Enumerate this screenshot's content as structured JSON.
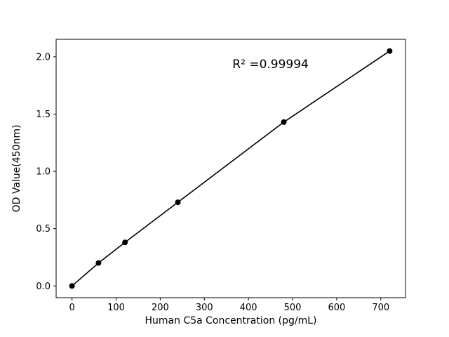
{
  "chart_data": {
    "type": "line",
    "title": "",
    "xlabel": "Human C5a Concentration (pg/mL)",
    "ylabel": "OD Value(450nm)",
    "annotation": {
      "text": "R² =0.99994",
      "x": 450,
      "y": 1.9
    },
    "points": {
      "x": [
        0,
        60,
        120,
        240,
        480,
        720
      ],
      "y": [
        0.0,
        0.2,
        0.38,
        0.73,
        1.43,
        2.05
      ]
    },
    "xlim": [
      -36,
      756
    ],
    "ylim": [
      -0.1025,
      2.1525
    ],
    "xticks": [
      0,
      100,
      200,
      300,
      400,
      500,
      600,
      700
    ],
    "yticks": [
      "0.0",
      "0.5",
      "1.0",
      "1.5",
      "2.0"
    ],
    "grid": false,
    "legend": "none",
    "line_color": "#000000",
    "marker_color": "#000000",
    "background": "#ffffff"
  }
}
